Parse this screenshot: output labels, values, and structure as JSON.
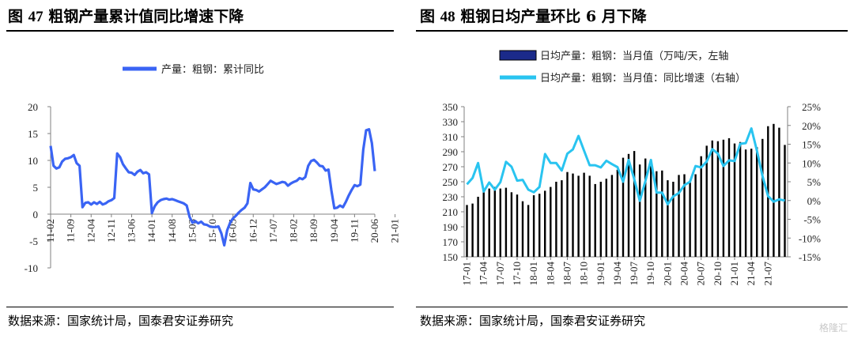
{
  "left": {
    "title_prefix": "图",
    "title_num": "47",
    "title_text": "粗钢产量累计值同比增速下降",
    "source": "数据来源：国家统计局，国泰君安证券研究"
  },
  "right": {
    "title_prefix": "图",
    "title_num": "48",
    "title_text": "粗钢日均产量环比 6 月下降",
    "source": "数据来源：国家统计局，国泰君安证券研究"
  },
  "watermark": "格隆汇",
  "colors": {
    "left_line": "#3a64f4",
    "right_line": "#29c4f0",
    "bars": "#000000"
  },
  "chart_data": [
    {
      "type": "line",
      "legend": "top-center",
      "series": [
        {
          "name": "产量：粗钢：累计同比",
          "color": "#3a64f4"
        }
      ],
      "ylim": [
        -10,
        20
      ],
      "yticks": [
        -10,
        -5,
        0,
        5,
        10,
        15,
        20
      ],
      "xticks": [
        "11-02",
        "11-09",
        "12-04",
        "12-11",
        "13-06",
        "14-01",
        "14-08",
        "15-03",
        "15-10",
        "16-05",
        "16-12",
        "17-07",
        "18-02",
        "18-09",
        "19-04",
        "19-11",
        "20-06",
        "21-01"
      ],
      "x_start": "2011-02",
      "values": [
        12.7,
        9.0,
        8.5,
        8.7,
        9.8,
        10.3,
        10.4,
        10.6,
        11.0,
        9.5,
        9.0,
        1.3,
        2.1,
        2.2,
        1.8,
        2.2,
        1.9,
        2.3,
        1.8,
        2.0,
        2.4,
        2.6,
        3.0,
        11.3,
        10.6,
        9.3,
        8.5,
        7.8,
        7.7,
        7.3,
        7.9,
        8.2,
        7.6,
        7.8,
        7.4,
        0.2,
        1.5,
        2.2,
        2.6,
        2.8,
        2.9,
        2.7,
        2.8,
        2.6,
        2.4,
        2.2,
        2.0,
        1.6,
        -0.5,
        -1.6,
        -1.3,
        -1.7,
        -1.4,
        -1.9,
        -2.0,
        -2.3,
        -2.4,
        -2.4,
        -2.3,
        -3.6,
        -5.8,
        -3.0,
        -1.6,
        -0.8,
        -0.3,
        0.3,
        0.8,
        1.2,
        2.0,
        5.8,
        4.6,
        4.5,
        4.2,
        4.6,
        5.0,
        5.6,
        6.2,
        5.9,
        5.6,
        5.8,
        6.0,
        5.9,
        5.3,
        5.7,
        6.0,
        6.2,
        6.7,
        6.5,
        6.9,
        9.0,
        9.9,
        10.1,
        9.6,
        9.0,
        8.9,
        8.1,
        8.3,
        4.4,
        1.1,
        1.2,
        1.6,
        1.3,
        2.3,
        3.5,
        4.5,
        5.4,
        5.2,
        5.5,
        12.0,
        15.6,
        15.8,
        13.2,
        8.0
      ]
    },
    {
      "type": "bar+line",
      "legend": "top-center",
      "series": [
        {
          "name": "日均产量：粗钢：当月值（万吨/天，左轴",
          "type": "bar",
          "color": "#000000"
        },
        {
          "name": "日均产量：粗钢：当月值：同比增速（右轴）",
          "type": "line",
          "color": "#29c4f0"
        }
      ],
      "ylim_left": [
        150,
        350
      ],
      "yticks_left": [
        150,
        170,
        190,
        210,
        230,
        250,
        270,
        290,
        310,
        330,
        350
      ],
      "ylim_right": [
        -15,
        25
      ],
      "yticks_right": [
        "-15%",
        "-10%",
        "-5%",
        "0%",
        "5%",
        "10%",
        "15%",
        "20%",
        "25%"
      ],
      "xticks": [
        "17-01",
        "17-04",
        "17-07",
        "17-10",
        "18-01",
        "18-04",
        "18-07",
        "18-10",
        "19-01",
        "19-04",
        "19-07",
        "19-10",
        "20-01",
        "20-04",
        "20-07",
        "20-10",
        "21-01",
        "21-04",
        "21-07"
      ],
      "x_start": "2017-01",
      "bars": [
        219,
        221,
        230,
        239,
        241,
        243,
        241,
        242,
        236,
        233,
        224,
        219,
        232,
        234,
        238,
        243,
        250,
        252,
        263,
        261,
        258,
        262,
        258,
        247,
        250,
        254,
        259,
        266,
        282,
        287,
        291,
        273,
        281,
        271,
        264,
        265,
        252,
        250,
        259,
        260,
        249,
        260,
        284,
        298,
        305,
        304,
        306,
        308,
        301,
        303,
        293,
        294,
        296,
        307,
        324,
        327,
        322,
        299
      ],
      "growth": [
        4.3,
        6.0,
        10.0,
        2.4,
        4.8,
        2.9,
        4.9,
        10.3,
        9.0,
        5.3,
        5.5,
        2.9,
        2.2,
        3.6,
        12.4,
        10.0,
        10.0,
        8.0,
        12.5,
        13.6,
        17.2,
        13.3,
        9.4,
        9.4,
        8.8,
        10.6,
        9.7,
        8.9,
        5.0,
        10.8,
        5.7,
        -0.1,
        5.2,
        10.8,
        2.1,
        2.1,
        -1.0,
        1.1,
        2.0,
        4.1,
        5.0,
        9.2,
        8.8,
        10.4,
        13.7,
        12.5,
        9.2,
        10.7,
        10.5,
        15.1,
        15.3,
        19.2,
        13.3,
        6.5,
        1.2,
        -0.3,
        0.3,
        0.0
      ]
    }
  ]
}
